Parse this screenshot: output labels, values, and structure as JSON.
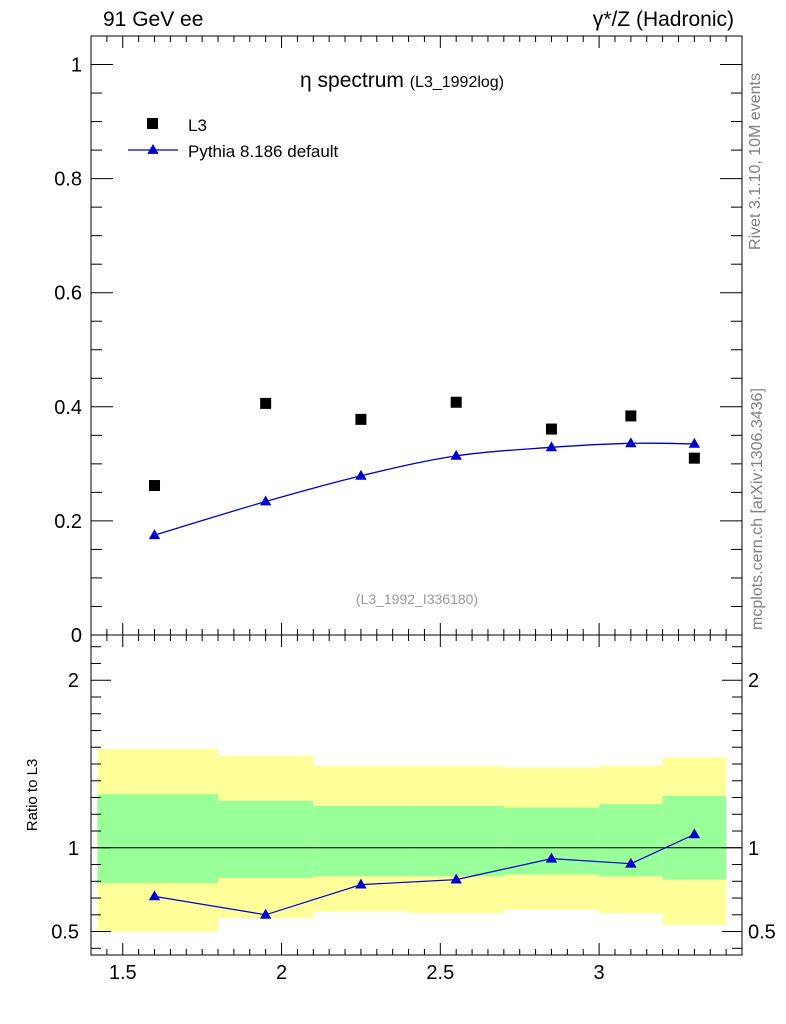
{
  "header": {
    "left": "91 GeV ee",
    "right": "γ*/Z (Hadronic)"
  },
  "side_labels": {
    "rivet": "Rivet 3.1.10,  10M events",
    "mcplots": "mcplots.cern.ch [arXiv:1306.3436]"
  },
  "chart_data": [
    {
      "type": "scatter",
      "panel": "main",
      "title": "η spectrum",
      "title_suffix": "(L3_1992log)",
      "watermark": "(L3_1992_I336180)",
      "xlim": [
        1.4,
        3.45
      ],
      "ylim": [
        0,
        1.05
      ],
      "x_ticks": [
        1.5,
        2,
        2.5,
        3
      ],
      "y_ticks": [
        {
          "value": 0,
          "label": "0"
        },
        {
          "value": 0.2,
          "label": "0.2"
        },
        {
          "value": 0.4,
          "label": "0.4"
        },
        {
          "value": 0.6,
          "label": "0.6"
        },
        {
          "value": 0.8,
          "label": "0.8"
        },
        {
          "value": 1,
          "label": "1"
        }
      ],
      "legend": {
        "placement": "top-left"
      },
      "series": [
        {
          "name": "L3",
          "marker": "square",
          "color": "#000000",
          "x": [
            1.6,
            1.95,
            2.25,
            2.55,
            2.85,
            3.1,
            3.3
          ],
          "y": [
            0.262,
            0.406,
            0.378,
            0.408,
            0.361,
            0.384,
            0.31
          ]
        },
        {
          "name": "Pythia 8.186 default",
          "marker": "triangle",
          "color": "#0000cc",
          "x": [
            1.6,
            1.95,
            2.25,
            2.55,
            2.85,
            3.1,
            3.3
          ],
          "y": [
            0.175,
            0.234,
            0.279,
            0.314,
            0.329,
            0.336,
            0.335
          ]
        }
      ]
    },
    {
      "type": "line",
      "panel": "ratio",
      "ylabel": "Ratio to L3",
      "xlim": [
        1.4,
        3.45
      ],
      "ylim": [
        0.36,
        2.27
      ],
      "x_ticks": [
        {
          "value": 1.5,
          "label": "1.5"
        },
        {
          "value": 2,
          "label": "2"
        },
        {
          "value": 2.5,
          "label": "2.5"
        },
        {
          "value": 3,
          "label": "3"
        }
      ],
      "y_ticks": [
        {
          "value": 0.5,
          "label": "0.5"
        },
        {
          "value": 1,
          "label": "1"
        },
        {
          "value": 2,
          "label": "2"
        }
      ],
      "bands": [
        {
          "x0": 1.42,
          "x1": 1.8,
          "yellow": [
            0.5,
            1.59
          ],
          "green": [
            0.79,
            1.32
          ]
        },
        {
          "x0": 1.8,
          "x1": 2.1,
          "yellow": [
            0.58,
            1.55
          ],
          "green": [
            0.82,
            1.28
          ]
        },
        {
          "x0": 2.1,
          "x1": 2.4,
          "yellow": [
            0.62,
            1.49
          ],
          "green": [
            0.83,
            1.25
          ]
        },
        {
          "x0": 2.4,
          "x1": 2.7,
          "yellow": [
            0.61,
            1.49
          ],
          "green": [
            0.83,
            1.25
          ]
        },
        {
          "x0": 2.7,
          "x1": 3.0,
          "yellow": [
            0.63,
            1.48
          ],
          "green": [
            0.84,
            1.24
          ]
        },
        {
          "x0": 3.0,
          "x1": 3.2,
          "yellow": [
            0.61,
            1.49
          ],
          "green": [
            0.83,
            1.26
          ]
        },
        {
          "x0": 3.2,
          "x1": 3.4,
          "yellow": [
            0.54,
            1.54
          ],
          "green": [
            0.81,
            1.31
          ]
        }
      ],
      "reference_line": 1,
      "series": [
        {
          "name": "Pythia 8.186 default",
          "marker": "triangle",
          "color": "#0000cc",
          "x": [
            1.6,
            1.95,
            2.25,
            2.55,
            2.85,
            3.1,
            3.3
          ],
          "y": [
            0.71,
            0.6,
            0.78,
            0.81,
            0.935,
            0.905,
            1.08
          ]
        }
      ]
    }
  ],
  "colors": {
    "band_yellow": "#ffff99",
    "band_green": "#99ff99",
    "mc": "#0000cc",
    "data": "#000000"
  }
}
